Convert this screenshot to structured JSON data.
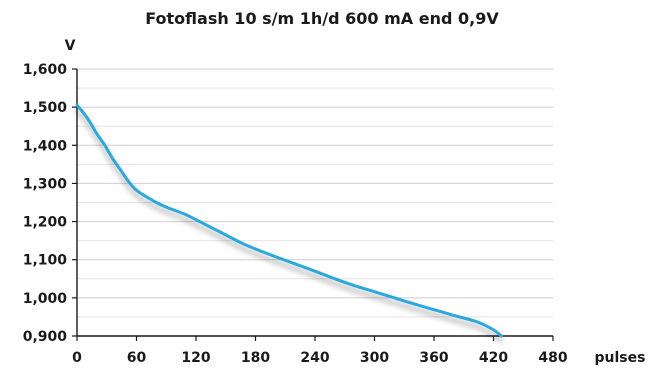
{
  "chart_data": {
    "type": "line",
    "title": "Fotoflash 10 s/m 1h/d 600 mA end 0,9V",
    "ylabel": "V",
    "xlabel": "pulses",
    "xlim": [
      0,
      480
    ],
    "ylim": [
      0.9,
      1.6
    ],
    "x_ticks": [
      0,
      60,
      120,
      180,
      240,
      300,
      360,
      420,
      480
    ],
    "y_ticks": [
      0.9,
      1.0,
      1.1,
      1.2,
      1.3,
      1.4,
      1.5,
      1.6
    ],
    "x_tick_labels": [
      "0",
      "60",
      "120",
      "180",
      "240",
      "300",
      "360",
      "420",
      "480"
    ],
    "y_tick_labels": [
      "0,900",
      "1,000",
      "1,100",
      "1,200",
      "1,300",
      "1,400",
      "1,500",
      "1,600"
    ],
    "grid": {
      "horizontal": true,
      "vertical": false,
      "minor_horizontal": true
    },
    "series": [
      {
        "color": "#29a8e0",
        "points": [
          [
            0,
            1.505
          ],
          [
            5,
            1.49
          ],
          [
            12,
            1.465
          ],
          [
            20,
            1.43
          ],
          [
            28,
            1.4
          ],
          [
            36,
            1.365
          ],
          [
            44,
            1.335
          ],
          [
            52,
            1.305
          ],
          [
            60,
            1.282
          ],
          [
            70,
            1.265
          ],
          [
            80,
            1.25
          ],
          [
            90,
            1.238
          ],
          [
            100,
            1.228
          ],
          [
            110,
            1.218
          ],
          [
            120,
            1.205
          ],
          [
            135,
            1.185
          ],
          [
            150,
            1.165
          ],
          [
            165,
            1.145
          ],
          [
            180,
            1.128
          ],
          [
            200,
            1.108
          ],
          [
            220,
            1.089
          ],
          [
            240,
            1.07
          ],
          [
            260,
            1.05
          ],
          [
            280,
            1.032
          ],
          [
            300,
            1.016
          ],
          [
            320,
            1.0
          ],
          [
            340,
            0.984
          ],
          [
            360,
            0.969
          ],
          [
            380,
            0.954
          ],
          [
            400,
            0.94
          ],
          [
            410,
            0.93
          ],
          [
            420,
            0.916
          ],
          [
            428,
            0.9
          ]
        ]
      }
    ]
  }
}
